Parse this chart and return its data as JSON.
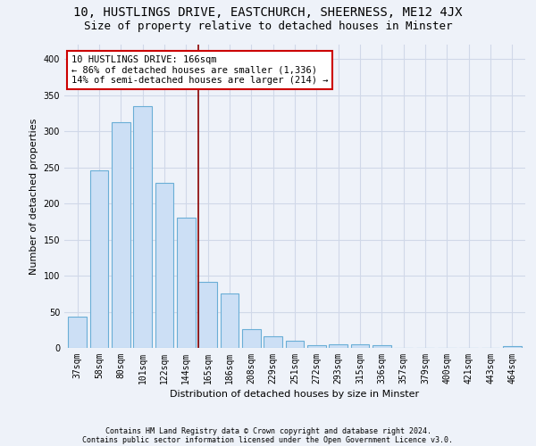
{
  "title": "10, HUSTLINGS DRIVE, EASTCHURCH, SHEERNESS, ME12 4JX",
  "subtitle": "Size of property relative to detached houses in Minster",
  "xlabel": "Distribution of detached houses by size in Minster",
  "ylabel": "Number of detached properties",
  "categories": [
    "37sqm",
    "58sqm",
    "80sqm",
    "101sqm",
    "122sqm",
    "144sqm",
    "165sqm",
    "186sqm",
    "208sqm",
    "229sqm",
    "251sqm",
    "272sqm",
    "293sqm",
    "315sqm",
    "336sqm",
    "357sqm",
    "379sqm",
    "400sqm",
    "421sqm",
    "443sqm",
    "464sqm"
  ],
  "values": [
    43,
    246,
    313,
    335,
    228,
    180,
    91,
    75,
    26,
    16,
    10,
    4,
    5,
    5,
    4,
    0,
    0,
    0,
    0,
    0,
    3
  ],
  "bar_color": "#ccdff5",
  "bar_edge_color": "#6aaed6",
  "vline_color": "#8b0000",
  "annotation_box_color": "#ffffff",
  "annotation_box_edge": "#cc0000",
  "annotation_line1": "10 HUSTLINGS DRIVE: 166sqm",
  "annotation_line2": "← 86% of detached houses are smaller (1,336)",
  "annotation_line3": "14% of semi-detached houses are larger (214) →",
  "ylim": [
    0,
    420
  ],
  "yticks": [
    0,
    50,
    100,
    150,
    200,
    250,
    300,
    350,
    400
  ],
  "footer1": "Contains HM Land Registry data © Crown copyright and database right 2024.",
  "footer2": "Contains public sector information licensed under the Open Government Licence v3.0.",
  "bg_color": "#eef2f9",
  "plot_bg_color": "#eef2f9",
  "grid_color": "#d0d8e8",
  "title_fontsize": 10,
  "subtitle_fontsize": 9,
  "tick_fontsize": 7,
  "ylabel_fontsize": 8,
  "xlabel_fontsize": 8,
  "footer_fontsize": 6,
  "annot_fontsize": 7.5
}
